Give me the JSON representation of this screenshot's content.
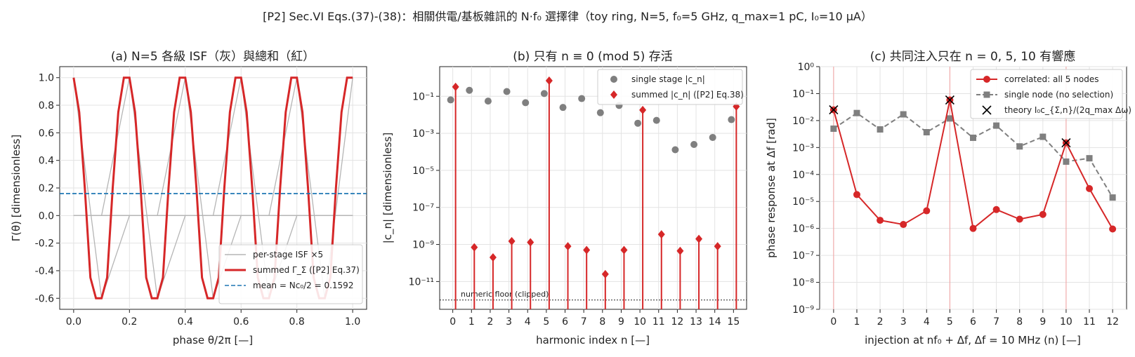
{
  "suptitle": "[P2] Sec.VI Eqs.(37)-(38)：相關供電/基板雜訊的 N·f₀ 選擇律（toy ring, N=5, f₀=5 GHz, q_max=1 pC, I₀=10 μA）",
  "chart_data": [
    {
      "id": "a",
      "type": "line",
      "title": "(a) N=5 各級 ISF（灰）與總和（紅）",
      "xlabel": "phase θ/2π [—]",
      "ylabel": "Γ(θ) [dimensionless]",
      "xlim": [
        -0.05,
        1.05
      ],
      "ylim": [
        -0.68,
        1.08
      ],
      "xticks": [
        0.0,
        0.2,
        0.4,
        0.6,
        0.8,
        1.0
      ],
      "xtick_labels": [
        "0.0",
        "0.2",
        "0.4",
        "0.6",
        "0.8",
        "1.0"
      ],
      "yticks": [
        -0.6,
        -0.4,
        -0.2,
        0.0,
        0.2,
        0.4,
        0.6,
        0.8,
        1.0
      ],
      "ytick_labels": [
        "-0.6",
        "-0.4",
        "-0.2",
        "0.0",
        "0.2",
        "0.4",
        "0.6",
        "0.8",
        "1.0"
      ],
      "grid": true,
      "legend_position": "bottom-right",
      "series": [
        {
          "name": "per-stage ISF ×5",
          "color": "#b5b5b5",
          "style": "solid",
          "group": "stage",
          "x": [
            0.0,
            0.1,
            0.2,
            1.0
          ],
          "y": [
            1.0,
            -0.6,
            0.0,
            0.0
          ]
        },
        {
          "name": "",
          "color": "#b5b5b5",
          "style": "solid",
          "group": "stage",
          "x": [
            0.0,
            0.1,
            0.2,
            0.3,
            0.4,
            1.0
          ],
          "y": [
            0.0,
            0.0,
            1.0,
            -0.6,
            0.0,
            0.0
          ]
        },
        {
          "name": "",
          "color": "#b5b5b5",
          "style": "solid",
          "group": "stage",
          "x": [
            0.0,
            0.3,
            0.4,
            0.5,
            0.6,
            1.0
          ],
          "y": [
            0.0,
            0.0,
            1.0,
            -0.6,
            0.0,
            0.0
          ]
        },
        {
          "name": "",
          "color": "#b5b5b5",
          "style": "solid",
          "group": "stage",
          "x": [
            0.0,
            0.5,
            0.6,
            0.7,
            0.8,
            1.0
          ],
          "y": [
            0.0,
            0.0,
            1.0,
            -0.6,
            0.0,
            0.0
          ]
        },
        {
          "name": "",
          "color": "#b5b5b5",
          "style": "solid",
          "group": "stage",
          "x": [
            0.0,
            0.7,
            0.8,
            0.9,
            1.0
          ],
          "y": [
            0.0,
            0.0,
            1.0,
            -0.6,
            1.0
          ]
        },
        {
          "name": "summed Γ_Σ ([P2] Eq.37)",
          "color": "#d62728",
          "style": "solid",
          "width": 3,
          "x": [
            0.0,
            0.02,
            0.04,
            0.06,
            0.08,
            0.1,
            0.12,
            0.14,
            0.16,
            0.18,
            0.2,
            0.22,
            0.24,
            0.26,
            0.28,
            0.3,
            0.32,
            0.34,
            0.36,
            0.38,
            0.4,
            0.42,
            0.44,
            0.46,
            0.48,
            0.5,
            0.52,
            0.54,
            0.56,
            0.58,
            0.6,
            0.62,
            0.64,
            0.66,
            0.68,
            0.7,
            0.72,
            0.74,
            0.76,
            0.78,
            0.8,
            0.82,
            0.84,
            0.86,
            0.88,
            0.9,
            0.92,
            0.94,
            0.96,
            0.98,
            1.0
          ],
          "y": [
            1.0,
            0.75,
            0.2,
            -0.45,
            -0.6,
            -0.6,
            -0.45,
            0.2,
            0.75,
            1.0,
            1.0,
            0.75,
            0.2,
            -0.45,
            -0.6,
            -0.6,
            -0.45,
            0.2,
            0.75,
            1.0,
            1.0,
            0.75,
            0.2,
            -0.45,
            -0.6,
            -0.6,
            -0.45,
            0.2,
            0.75,
            1.0,
            1.0,
            0.75,
            0.2,
            -0.45,
            -0.6,
            -0.6,
            -0.45,
            0.2,
            0.75,
            1.0,
            1.0,
            0.75,
            0.2,
            -0.45,
            -0.6,
            -0.6,
            -0.45,
            0.2,
            0.75,
            1.0,
            1.0
          ]
        },
        {
          "name": "mean = Nc₀/2 = 0.1592",
          "color": "#1f77b4",
          "style": "dashed",
          "hline": 0.1592
        }
      ]
    },
    {
      "id": "b",
      "type": "stem",
      "title": "(b) 只有 n ≡ 0 (mod 5) 存活",
      "xlabel": "harmonic index n [—]",
      "ylabel": "|c_n| [dimensionless]",
      "log_y": true,
      "ylim_exp": [
        -12.5,
        0.6
      ],
      "xlim": [
        -0.7,
        15.7
      ],
      "xticks": [
        0,
        1,
        2,
        3,
        4,
        5,
        6,
        7,
        8,
        9,
        10,
        11,
        12,
        13,
        14,
        15
      ],
      "ytick_exponents": [
        -11,
        -9,
        -7,
        -5,
        -3,
        -1
      ],
      "grid": true,
      "legend_position": "top-right",
      "floor_value": 1e-12,
      "floor_label": "numeric floor (clipped)",
      "series": [
        {
          "name": "single stage |c_n|",
          "color": "#7f7f7f",
          "marker": "circle",
          "x": [
            0,
            1,
            2,
            3,
            4,
            5,
            6,
            7,
            8,
            9,
            10,
            11,
            12,
            13,
            14,
            15
          ],
          "y": [
            0.0637,
            0.21,
            0.055,
            0.18,
            0.045,
            0.14,
            0.025,
            0.075,
            0.013,
            0.032,
            0.0035,
            0.005,
            0.00013,
            0.00025,
            0.0006,
            0.0055
          ]
        },
        {
          "name": "summed |c_n| ([P2] Eq.38)",
          "color": "#d62728",
          "marker": "diamond",
          "x": [
            0,
            1,
            2,
            3,
            4,
            5,
            6,
            7,
            8,
            9,
            10,
            11,
            12,
            13,
            14,
            15
          ],
          "y": [
            0.32,
            7e-10,
            2e-10,
            1.5e-09,
            1.3e-09,
            0.7,
            8e-10,
            5e-10,
            2.5e-11,
            5e-10,
            0.018,
            3.5e-09,
            4.5e-10,
            2e-09,
            8e-10,
            0.028
          ]
        }
      ]
    },
    {
      "id": "c",
      "type": "line",
      "title": "(c) 共同注入只在 n = 0, 5, 10 有響應",
      "xlabel": "injection at nf₀ + Δf,  Δf = 10 MHz  (n) [—]",
      "ylabel": "phase response at Δf [rad]",
      "log_y": true,
      "ylim_exp": [
        -9,
        0
      ],
      "xlim": [
        -0.6,
        12.6
      ],
      "xticks": [
        0,
        1,
        2,
        3,
        4,
        5,
        6,
        7,
        8,
        9,
        10,
        11,
        12
      ],
      "ytick_exponents": [
        -9,
        -8,
        -7,
        -6,
        -5,
        -4,
        -3,
        -2,
        -1,
        0
      ],
      "vlines": [
        0,
        5,
        10
      ],
      "grid": true,
      "legend_position": "top-right",
      "series": [
        {
          "name": "correlated: all 5 nodes",
          "color": "#d62728",
          "style": "solid",
          "marker": "circle",
          "x": [
            0,
            1,
            2,
            3,
            4,
            5,
            6,
            7,
            8,
            9,
            10,
            11,
            12
          ],
          "y": [
            0.025,
            1.8e-05,
            2e-06,
            1.4e-06,
            4.5e-06,
            0.058,
            1e-06,
            5e-06,
            2.2e-06,
            3.3e-06,
            0.0015,
            3e-05,
            9.5e-07
          ]
        },
        {
          "name": "single node (no selection)",
          "color": "#7f7f7f",
          "style": "dashed",
          "marker": "square",
          "x": [
            0,
            1,
            2,
            3,
            4,
            5,
            6,
            7,
            8,
            9,
            10,
            11,
            12
          ],
          "y": [
            0.005,
            0.019,
            0.0047,
            0.017,
            0.0037,
            0.012,
            0.0023,
            0.0065,
            0.0011,
            0.0025,
            0.0003,
            0.0004,
            1.4e-05
          ]
        },
        {
          "name": "theory I₀c_{Σ,n}/(2q_max Δω)",
          "color": "#000000",
          "marker": "x",
          "x": [
            0,
            5,
            10
          ],
          "y": [
            0.025,
            0.058,
            0.0015
          ]
        }
      ]
    }
  ]
}
